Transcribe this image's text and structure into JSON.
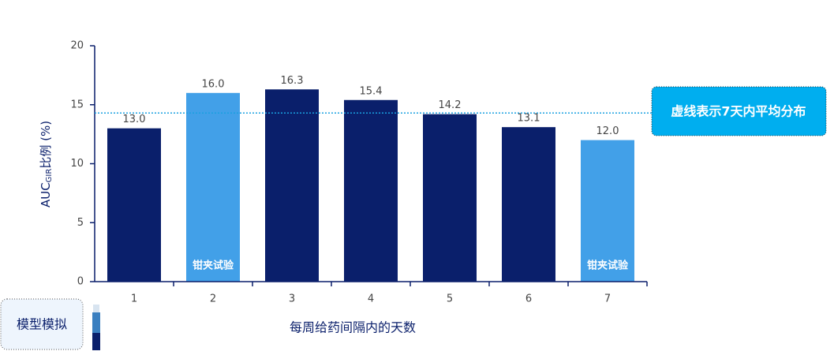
{
  "chart_data": {
    "type": "bar",
    "categories": [
      "1",
      "2",
      "3",
      "4",
      "5",
      "6",
      "7"
    ],
    "values": [
      13.0,
      16.0,
      16.3,
      15.4,
      14.2,
      13.1,
      12.0
    ],
    "value_labels": [
      "13.0",
      "16.0",
      "16.3",
      "15.4",
      "14.2",
      "13.1",
      "12.0"
    ],
    "colors": [
      "#0a1f6b",
      "#42a0e8",
      "#0a1f6b",
      "#0a1f6b",
      "#0a1f6b",
      "#0a1f6b",
      "#42a0e8"
    ],
    "inner_labels": [
      null,
      "钳夹试验",
      null,
      null,
      null,
      null,
      "钳夹试验"
    ],
    "ylim": [
      0,
      20
    ],
    "yticks": [
      0,
      5,
      10,
      15,
      20
    ],
    "y_label": {
      "main": "AUC",
      "sub": "GIR",
      "rest": "比例 (%)"
    },
    "x_label": "每周给药间隔内的天数",
    "reference_line": {
      "value": 14.3,
      "color": "#1aa0e0",
      "label": "虚线表示7天内平均分布"
    },
    "source_note": "模型模拟"
  }
}
